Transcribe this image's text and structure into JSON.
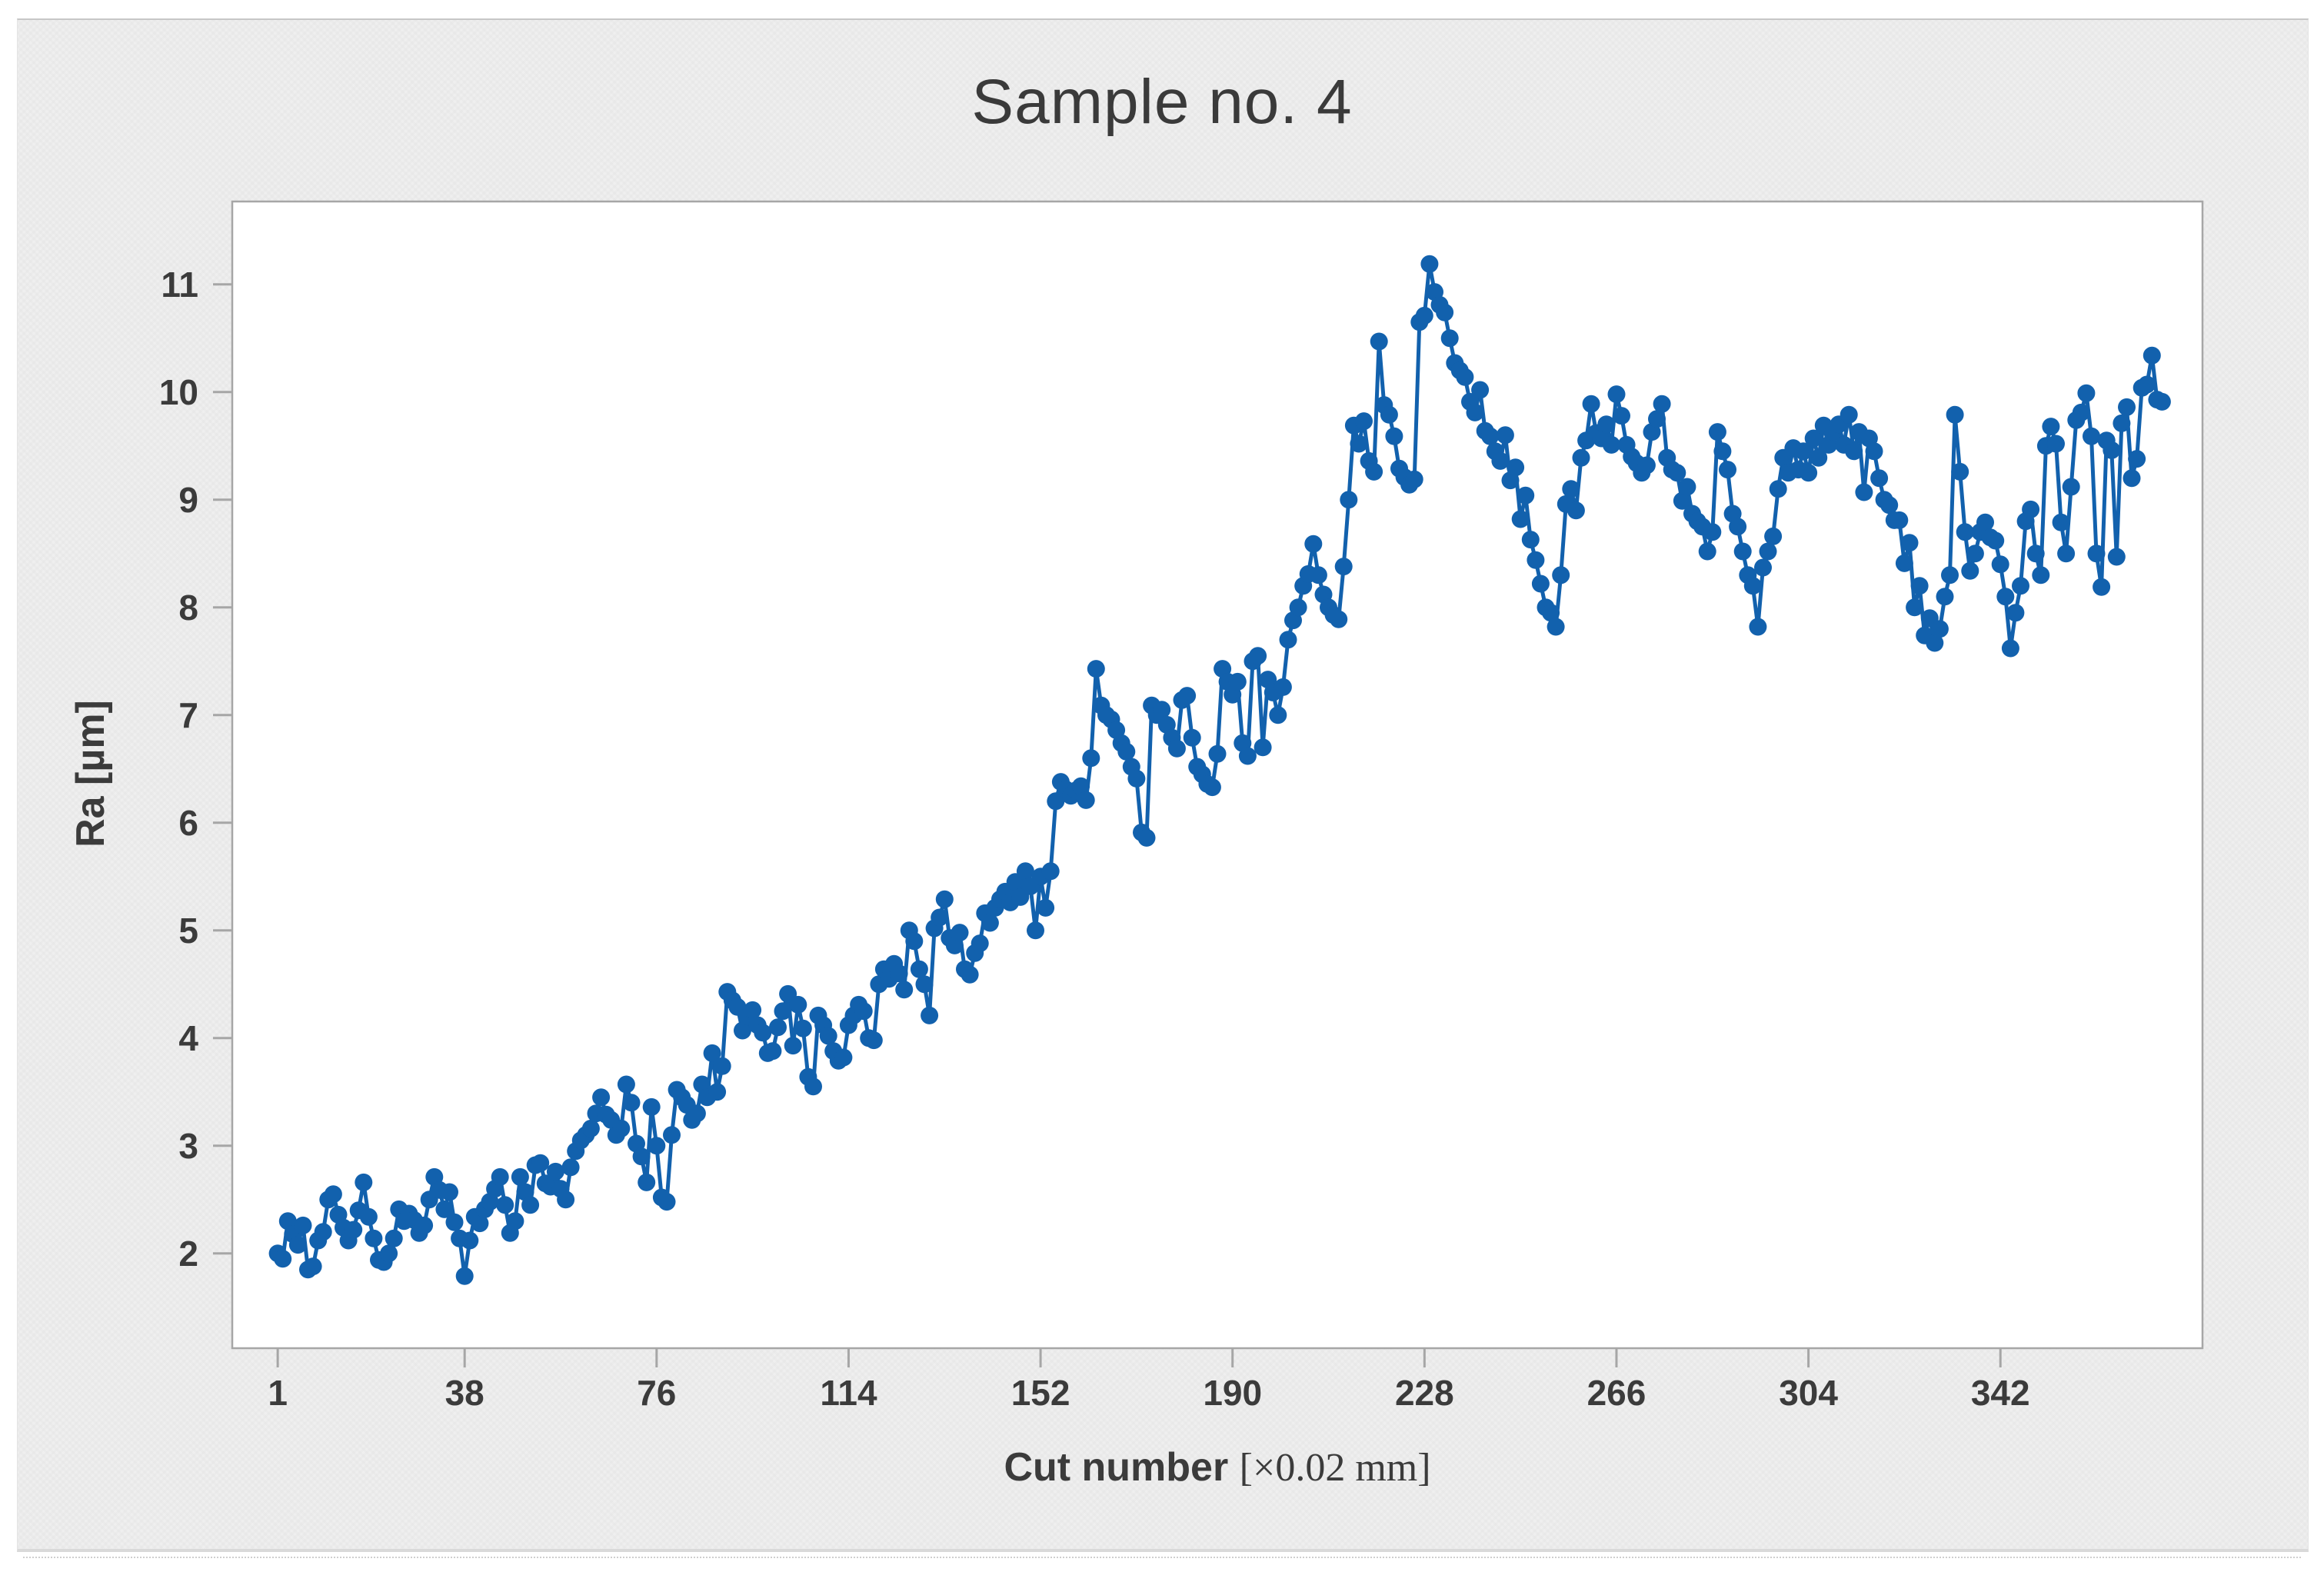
{
  "figure": {
    "title": "Sample no. 4"
  },
  "chart_data": {
    "type": "line",
    "title": "Sample no. 4",
    "ylabel": "Ra [µm]",
    "xlabel": "Cut number [×0.02 mm]",
    "xlabel_sans": "Cut number ",
    "xlabel_serif": "[×0.02 mm]",
    "legend": "none",
    "grid": false,
    "marker": "circle",
    "x_ticks": [
      1,
      38,
      76,
      114,
      152,
      190,
      228,
      266,
      304,
      342
    ],
    "y_ticks": [
      2,
      3,
      4,
      5,
      6,
      7,
      8,
      9,
      10,
      11
    ],
    "xlim": [
      -8,
      382
    ],
    "ylim": [
      1.12,
      11.77
    ],
    "x_start": 1,
    "x_step": 1,
    "colors": {
      "series": "#1261AD",
      "axis": "#A6A6A6",
      "text": "#3B3B3B",
      "plot_bg": "#FFFFFF",
      "panel_bg": "#EFEFEF"
    },
    "values": [
      2.0,
      1.95,
      2.3,
      2.18,
      2.08,
      2.26,
      1.85,
      1.88,
      2.12,
      2.2,
      2.5,
      2.55,
      2.36,
      2.24,
      2.12,
      2.22,
      2.4,
      2.66,
      2.34,
      2.14,
      1.94,
      1.92,
      2.0,
      2.14,
      2.41,
      2.3,
      2.37,
      2.31,
      2.19,
      2.26,
      2.5,
      2.71,
      2.59,
      2.41,
      2.57,
      2.29,
      2.14,
      1.79,
      2.12,
      2.34,
      2.28,
      2.41,
      2.48,
      2.6,
      2.71,
      2.45,
      2.19,
      2.3,
      2.71,
      2.57,
      2.45,
      2.82,
      2.84,
      2.65,
      2.62,
      2.76,
      2.6,
      2.5,
      2.8,
      2.95,
      3.05,
      3.1,
      3.16,
      3.3,
      3.45,
      3.29,
      3.24,
      3.1,
      3.16,
      3.57,
      3.4,
      3.02,
      2.9,
      2.66,
      3.36,
      3.0,
      2.52,
      2.48,
      3.1,
      3.52,
      3.45,
      3.38,
      3.24,
      3.3,
      3.57,
      3.45,
      3.86,
      3.5,
      3.74,
      4.43,
      4.35,
      4.29,
      4.07,
      4.2,
      4.26,
      4.12,
      4.05,
      3.86,
      3.88,
      4.1,
      4.25,
      4.41,
      3.93,
      4.31,
      4.09,
      3.64,
      3.55,
      4.21,
      4.12,
      4.02,
      3.88,
      3.79,
      3.82,
      4.12,
      4.21,
      4.31,
      4.25,
      4.0,
      3.98,
      4.5,
      4.64,
      4.55,
      4.69,
      4.6,
      4.45,
      5.0,
      4.9,
      4.64,
      4.5,
      4.21,
      5.02,
      5.12,
      5.29,
      4.93,
      4.86,
      4.98,
      4.64,
      4.59,
      4.79,
      4.88,
      5.16,
      5.07,
      5.21,
      5.29,
      5.36,
      5.26,
      5.45,
      5.31,
      5.55,
      5.41,
      5.0,
      5.5,
      5.21,
      5.55,
      6.2,
      6.38,
      6.31,
      6.25,
      6.3,
      6.34,
      6.21,
      6.6,
      7.43,
      7.09,
      7.0,
      6.96,
      6.86,
      6.74,
      6.66,
      6.52,
      6.41,
      5.91,
      5.86,
      7.09,
      7.0,
      7.05,
      6.91,
      6.79,
      6.69,
      7.14,
      7.18,
      6.79,
      6.52,
      6.45,
      6.36,
      6.33,
      6.64,
      7.43,
      7.31,
      7.19,
      7.31,
      6.74,
      6.62,
      7.5,
      7.55,
      6.7,
      7.33,
      7.21,
      7.0,
      7.26,
      7.7,
      7.88,
      8.0,
      8.2,
      8.31,
      8.59,
      8.3,
      8.12,
      8.0,
      7.93,
      7.89,
      8.38,
      9.0,
      9.69,
      9.52,
      9.73,
      9.36,
      9.26,
      10.47,
      9.88,
      9.79,
      9.59,
      9.29,
      9.21,
      9.14,
      9.19,
      10.65,
      10.71,
      11.19,
      10.93,
      10.81,
      10.74,
      10.5,
      10.27,
      10.2,
      10.14,
      9.91,
      9.81,
      10.02,
      9.64,
      9.59,
      9.45,
      9.36,
      9.6,
      9.18,
      9.3,
      8.82,
      9.04,
      8.63,
      8.44,
      8.22,
      8.0,
      7.95,
      7.82,
      8.3,
      8.96,
      9.1,
      8.9,
      9.39,
      9.55,
      9.89,
      9.62,
      9.57,
      9.7,
      9.51,
      9.98,
      9.78,
      9.51,
      9.4,
      9.34,
      9.25,
      9.32,
      9.63,
      9.75,
      9.89,
      9.39,
      9.28,
      9.25,
      8.99,
      9.12,
      8.87,
      8.8,
      8.75,
      8.52,
      8.7,
      9.63,
      9.45,
      9.28,
      8.87,
      8.75,
      8.52,
      8.3,
      8.2,
      7.82,
      8.37,
      8.52,
      8.66,
      9.1,
      9.39,
      9.25,
      9.48,
      9.28,
      9.45,
      9.25,
      9.57,
      9.39,
      9.69,
      9.51,
      9.63,
      9.7,
      9.51,
      9.79,
      9.45,
      9.63,
      9.07,
      9.57,
      9.45,
      9.2,
      9.0,
      8.95,
      8.81,
      8.81,
      8.41,
      8.6,
      8.0,
      8.2,
      7.74,
      7.9,
      7.67,
      7.8,
      8.1,
      8.3,
      9.79,
      9.26,
      8.7,
      8.34,
      8.5,
      8.7,
      8.79,
      8.65,
      8.62,
      8.4,
      8.1,
      7.62,
      7.95,
      8.2,
      8.8,
      8.91,
      8.5,
      8.3,
      9.5,
      9.68,
      9.52,
      8.79,
      8.5,
      9.12,
      9.74,
      9.81,
      9.99,
      9.59,
      8.5,
      8.19,
      9.55,
      9.46,
      8.47,
      9.71,
      9.86,
      9.2,
      9.38,
      10.04,
      10.07,
      10.34,
      9.93,
      9.91
    ]
  }
}
